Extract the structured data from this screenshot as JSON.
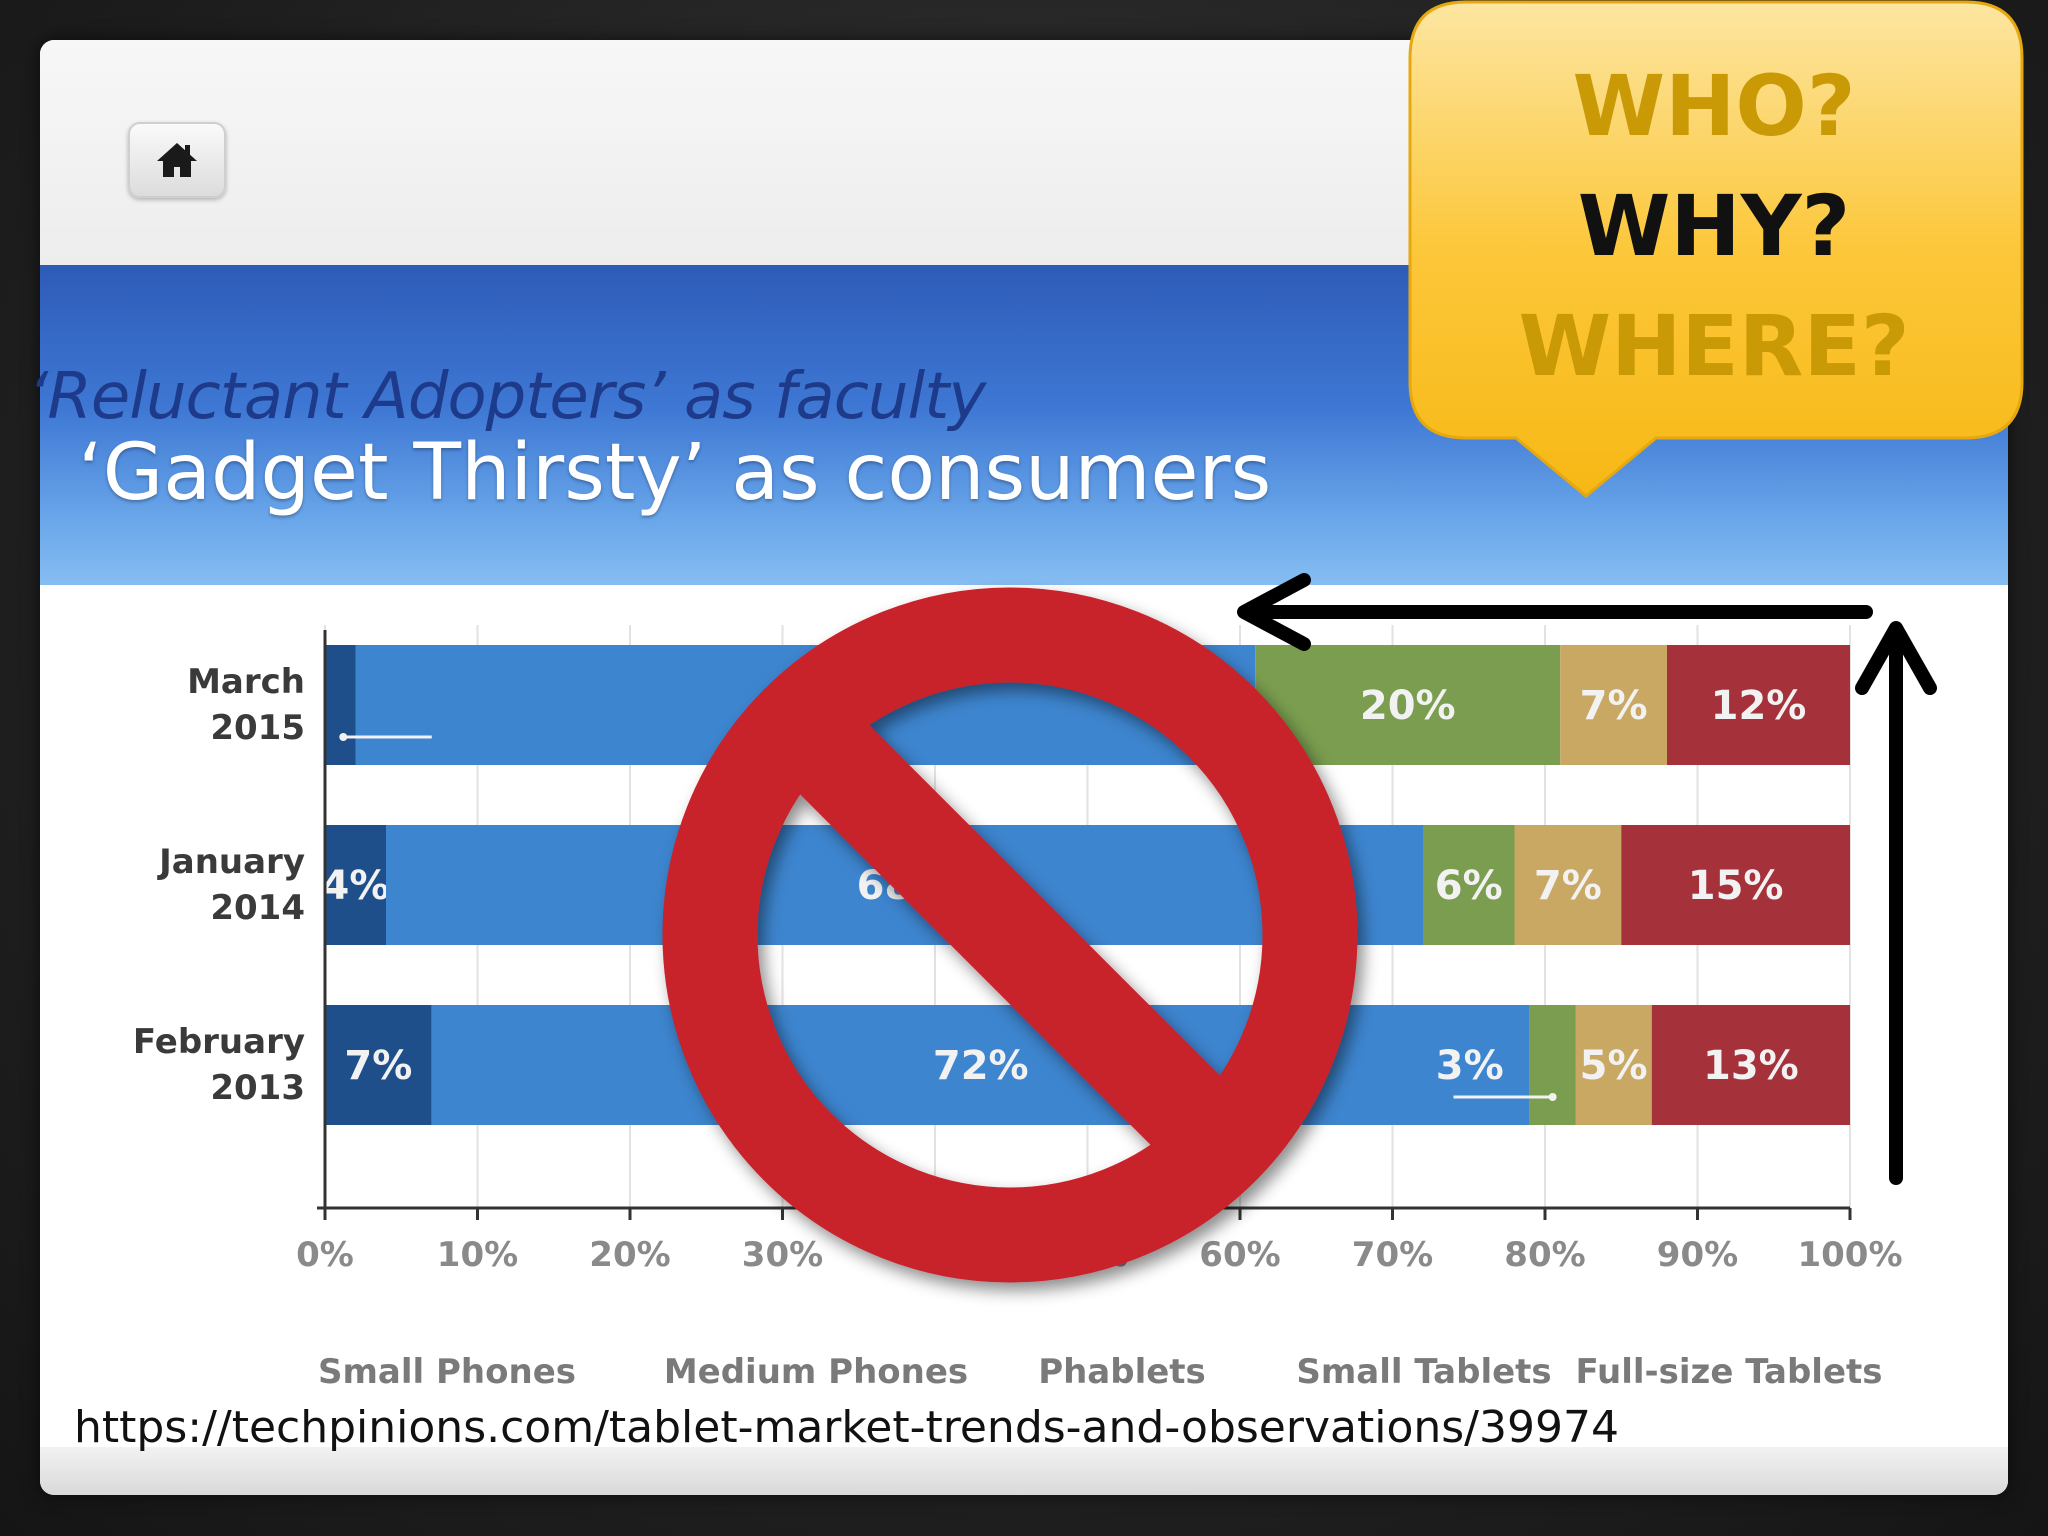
{
  "slide": {
    "title_line1": "‘Reluctant Adopters’ as faculty",
    "title_line2": "‘Gadget Thirsty’ as consumers",
    "source_url": "https://techpinions.com/tablet-market-trends-and-observations/39974",
    "home_icon": "home-icon"
  },
  "callout": {
    "line1": "WHO?",
    "line2": "WHY?",
    "line3": "WHERE?",
    "colors": {
      "who": "#c99a06",
      "why": "#111111",
      "where": "#c99a06",
      "bubble": "#fbc428"
    }
  },
  "overlay": {
    "prohibition_icon": "no-sign-icon",
    "arrow_icon": "arrow-icon",
    "color": "#c8202b"
  },
  "chart_data": {
    "type": "bar",
    "orientation": "horizontal",
    "stacked": true,
    "categories": [
      "March 2015",
      "January 2014",
      "February 2013"
    ],
    "category_lines": [
      [
        "March",
        "2015"
      ],
      [
        "January",
        "2014"
      ],
      [
        "February",
        "2013"
      ]
    ],
    "series": [
      {
        "name": "Small Phones",
        "values": [
          2,
          4,
          7
        ],
        "color": "#1e4f8a"
      },
      {
        "name": "Medium Phones",
        "values": [
          59,
          68,
          72
        ],
        "color": "#3d85cf"
      },
      {
        "name": "Phablets",
        "values": [
          20,
          6,
          3
        ],
        "color": "#7a9d4f"
      },
      {
        "name": "Small Tablets",
        "values": [
          7,
          7,
          5
        ],
        "color": "#c8a862"
      },
      {
        "name": "Full-size Tablets",
        "values": [
          12,
          15,
          13
        ],
        "color": "#a5313a"
      }
    ],
    "data_labels": [
      [
        "2%",
        "",
        "20%",
        "7%",
        "12%"
      ],
      [
        "4%",
        "68%",
        "6%",
        "7%",
        "15%"
      ],
      [
        "7%",
        "72%",
        "3%",
        "5%",
        "13%"
      ]
    ],
    "x_ticks": [
      "0%",
      "10%",
      "20%",
      "30%",
      "40%",
      "50%",
      "60%",
      "70%",
      "80%",
      "90%",
      "100%"
    ],
    "xlim": [
      0,
      100
    ],
    "grid": true,
    "legend_position": "bottom"
  }
}
